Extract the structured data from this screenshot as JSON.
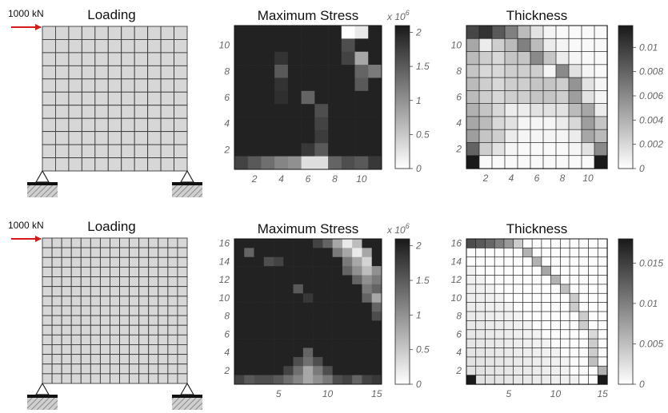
{
  "rows": [
    {
      "n": 11,
      "load_label": "1000 kN",
      "loading_title": "Loading",
      "stress": {
        "title": "Maximum Stress",
        "exponent_base": "x 10",
        "exponent_power": "6",
        "cbar_ticks": [
          "2",
          "1.5",
          "1",
          "0.5",
          "0"
        ],
        "cbar_values": [
          2,
          1.5,
          1,
          0.5,
          0
        ],
        "vmax": 2.1,
        "x_ticks": [
          "2",
          "4",
          "6",
          "8",
          "10"
        ],
        "x_tick_values": [
          2,
          4,
          6,
          8,
          10
        ],
        "y_ticks": [
          "10",
          "8",
          "6",
          "4",
          "2"
        ],
        "y_tick_values": [
          10,
          8,
          6,
          4,
          2
        ],
        "bright": [
          [
            11,
            9,
            1.6
          ],
          [
            11,
            10,
            0.9
          ],
          [
            10,
            9,
            0.2
          ],
          [
            9,
            10,
            0.6
          ],
          [
            8,
            10,
            0.3
          ],
          [
            9,
            9,
            0.15
          ],
          [
            8,
            11,
            0.4
          ],
          [
            7,
            10,
            0.25
          ],
          [
            8,
            4,
            0.25
          ],
          [
            6,
            6,
            0.3
          ],
          [
            5,
            7,
            0.2
          ],
          [
            4,
            7,
            0.15
          ],
          [
            3,
            7,
            0.12
          ],
          [
            2,
            7,
            0.25
          ],
          [
            2,
            6,
            0.1
          ],
          [
            1,
            1,
            0.15
          ],
          [
            1,
            2,
            0.25
          ],
          [
            1,
            3,
            0.35
          ],
          [
            1,
            4,
            0.45
          ],
          [
            1,
            5,
            0.5
          ],
          [
            1,
            6,
            0.85
          ],
          [
            1,
            7,
            0.85
          ],
          [
            1,
            8,
            0.3
          ],
          [
            1,
            9,
            0.2
          ],
          [
            1,
            10,
            0.25
          ],
          [
            1,
            11,
            0.1
          ],
          [
            9,
            4,
            0.08
          ],
          [
            7,
            4,
            0.08
          ],
          [
            6,
            4,
            0.06
          ]
        ]
      },
      "thickness": {
        "title": "Thickness",
        "cbar_ticks": [
          "0.01",
          "0.008",
          "0.006",
          "0.004",
          "0.002",
          "0"
        ],
        "cbar_values": [
          0.01,
          0.008,
          0.006,
          0.004,
          0.002,
          0
        ],
        "vmax": 0.0118,
        "x_ticks": [
          "2",
          "4",
          "6",
          "8",
          "10"
        ],
        "x_tick_values": [
          2,
          4,
          6,
          8,
          10
        ],
        "y_ticks": [
          "10",
          "8",
          "6",
          "4",
          "2"
        ],
        "y_tick_values": [
          10,
          8,
          6,
          4,
          2
        ],
        "grid": [
          [
            0.0095,
            0.0105,
            0.0085,
            0.0065,
            0.0035,
            0.0015,
            0.0005,
            0.0003,
            0.0003,
            0.0003,
            0.0003
          ],
          [
            0.0045,
            0.001,
            0.0025,
            0.0035,
            0.0065,
            0.0035,
            0.001,
            0.0005,
            0.0003,
            0.0003,
            0.0003
          ],
          [
            0.0035,
            0.0025,
            0.002,
            0.003,
            0.003,
            0.006,
            0.003,
            0.001,
            0.0005,
            0.0003,
            0.0003
          ],
          [
            0.003,
            0.002,
            0.002,
            0.0025,
            0.0025,
            0.0025,
            0.0005,
            0.006,
            0.0015,
            0.0005,
            0.0003
          ],
          [
            0.0035,
            0.0025,
            0.002,
            0.0025,
            0.0025,
            0.003,
            0.003,
            0.0025,
            0.0055,
            0.0015,
            0.0005
          ],
          [
            0.0035,
            0.0025,
            0.002,
            0.0025,
            0.0025,
            0.003,
            0.003,
            0.0025,
            0.005,
            0.0015,
            0.0005
          ],
          [
            0.004,
            0.003,
            0.002,
            0.001,
            0.001,
            0.0015,
            0.0015,
            0.0015,
            0.0035,
            0.0045,
            0.001
          ],
          [
            0.0045,
            0.0035,
            0.002,
            0.0015,
            0.0005,
            0.0005,
            0.0005,
            0.001,
            0.002,
            0.005,
            0.003
          ],
          [
            0.005,
            0.003,
            0.0025,
            0.001,
            0.0005,
            0.0005,
            0.0005,
            0.0005,
            0.001,
            0.0045,
            0.0035
          ],
          [
            0.008,
            0.0025,
            0.0015,
            0.0005,
            0.0003,
            0.0003,
            0.0003,
            0.0003,
            0.0005,
            0.0015,
            0.006
          ],
          [
            0.0118,
            0.0003,
            0.0003,
            0.0003,
            0.0003,
            0.0003,
            0.0003,
            0.0003,
            0.0003,
            0.0003,
            0.0118
          ]
        ]
      }
    },
    {
      "n": 15,
      "load_label": "1000 kN",
      "loading_title": "Loading",
      "stress": {
        "title": "Maximum Stress",
        "exponent_base": "x 10",
        "exponent_power": "6",
        "cbar_ticks": [
          "2",
          "1.5",
          "1",
          "0.5",
          "0"
        ],
        "cbar_values": [
          2,
          1.5,
          1,
          0.5,
          0
        ],
        "vmax": 2.1,
        "x_ticks": [
          "5",
          "10",
          "15"
        ],
        "x_tick_values": [
          5,
          10,
          15
        ],
        "y_ticks": [
          "16",
          "14",
          "12",
          "10",
          "8",
          "6",
          "4",
          "2"
        ],
        "y_tick_values": [
          16,
          14,
          12,
          10,
          8,
          6,
          4,
          2
        ],
        "bright": [
          [
            16,
            10,
            0.3
          ],
          [
            16,
            11,
            0.6
          ],
          [
            16,
            12,
            0.9
          ],
          [
            16,
            13,
            0.7
          ],
          [
            15,
            11,
            0.4
          ],
          [
            15,
            12,
            0.6
          ],
          [
            15,
            13,
            0.9
          ],
          [
            15,
            14,
            0.6
          ],
          [
            14,
            12,
            0.4
          ],
          [
            14,
            13,
            0.6
          ],
          [
            14,
            14,
            0.8
          ],
          [
            13,
            12,
            0.3
          ],
          [
            13,
            13,
            0.5
          ],
          [
            13,
            14,
            0.7
          ],
          [
            13,
            15,
            0.5
          ],
          [
            12,
            13,
            0.3
          ],
          [
            12,
            14,
            0.5
          ],
          [
            12,
            15,
            0.4
          ],
          [
            11,
            14,
            0.4
          ],
          [
            11,
            15,
            0.3
          ],
          [
            10,
            14,
            0.3
          ],
          [
            10,
            15,
            0.6
          ],
          [
            9,
            15,
            0.3
          ],
          [
            8,
            15,
            0.2
          ],
          [
            15,
            2,
            0.3
          ],
          [
            14,
            4,
            0.2
          ],
          [
            14,
            5,
            0.15
          ],
          [
            11,
            7,
            0.25
          ],
          [
            10,
            8,
            0.1
          ],
          [
            16,
            9,
            0.15
          ],
          [
            4,
            8,
            0.3
          ],
          [
            3,
            7,
            0.2
          ],
          [
            3,
            8,
            0.35
          ],
          [
            3,
            9,
            0.2
          ],
          [
            2,
            6,
            0.15
          ],
          [
            2,
            7,
            0.35
          ],
          [
            2,
            8,
            0.6
          ],
          [
            2,
            9,
            0.4
          ],
          [
            2,
            10,
            0.2
          ],
          [
            1,
            1,
            0.15
          ],
          [
            1,
            2,
            0.25
          ],
          [
            1,
            3,
            0.2
          ],
          [
            1,
            4,
            0.2
          ],
          [
            1,
            5,
            0.25
          ],
          [
            1,
            6,
            0.35
          ],
          [
            1,
            7,
            0.45
          ],
          [
            1,
            8,
            0.6
          ],
          [
            1,
            9,
            0.5
          ],
          [
            1,
            10,
            0.4
          ],
          [
            1,
            11,
            0.2
          ],
          [
            1,
            12,
            0.15
          ],
          [
            1,
            13,
            0.3
          ],
          [
            1,
            14,
            0.15
          ],
          [
            1,
            15,
            0.1
          ]
        ]
      },
      "thickness": {
        "title": "Thickness",
        "cbar_ticks": [
          "0.015",
          "0.01",
          "0.005",
          "0"
        ],
        "cbar_values": [
          0.015,
          0.01,
          0.005,
          0
        ],
        "vmax": 0.018,
        "x_ticks": [
          "5",
          "10",
          "15"
        ],
        "x_tick_values": [
          5,
          10,
          15
        ],
        "y_ticks": [
          "16",
          "14",
          "12",
          "10",
          "8",
          "6",
          "4",
          "2"
        ],
        "y_tick_values": [
          16,
          14,
          12,
          10,
          8,
          6,
          4,
          2
        ],
        "diag": [
          [
            16,
            1,
            0.014
          ],
          [
            16,
            2,
            0.013
          ],
          [
            16,
            3,
            0.012
          ],
          [
            16,
            4,
            0.01
          ],
          [
            16,
            5,
            0.008
          ],
          [
            16,
            6,
            0.004
          ],
          [
            15,
            7,
            0.006
          ],
          [
            14,
            8,
            0.006
          ],
          [
            13,
            9,
            0.007
          ],
          [
            12,
            10,
            0.006
          ],
          [
            11,
            11,
            0.005
          ],
          [
            10,
            12,
            0.004
          ],
          [
            9,
            12,
            0.004
          ],
          [
            8,
            13,
            0.004
          ],
          [
            7,
            13,
            0.004
          ],
          [
            6,
            14,
            0.003
          ],
          [
            5,
            14,
            0.004
          ],
          [
            4,
            14,
            0.004
          ],
          [
            3,
            14,
            0.005
          ],
          [
            2,
            15,
            0.006
          ],
          [
            1,
            15,
            0.018
          ],
          [
            1,
            1,
            0.018
          ]
        ]
      }
    }
  ]
}
